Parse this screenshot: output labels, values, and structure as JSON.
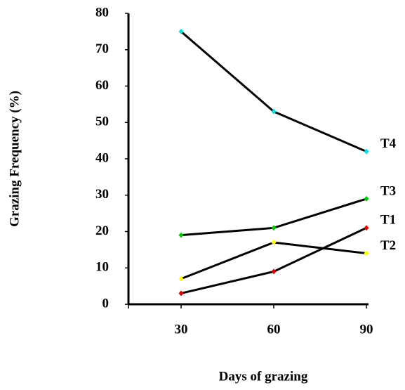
{
  "chart_data": {
    "type": "line",
    "y_label": "Grazing Frequency (%)",
    "x_label": "Days of grazing",
    "categories": [
      "30",
      "60",
      "90"
    ],
    "ylim": [
      0,
      80
    ],
    "yticks": [
      0,
      10,
      20,
      30,
      40,
      50,
      60,
      70,
      80
    ],
    "line_color": "#000000",
    "series": [
      {
        "name": "T1",
        "color": "#e00000",
        "values": [
          3,
          9,
          21
        ]
      },
      {
        "name": "T2",
        "color": "#ffff00",
        "values": [
          7,
          17,
          14
        ]
      },
      {
        "name": "T3",
        "color": "#00cc00",
        "values": [
          19,
          21,
          29
        ]
      },
      {
        "name": "T4",
        "color": "#00e0e0",
        "values": [
          75,
          53,
          42
        ]
      }
    ]
  }
}
